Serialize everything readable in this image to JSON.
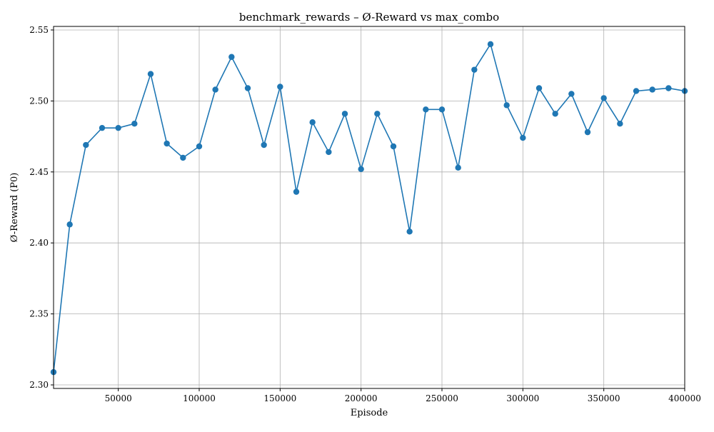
{
  "chart_data": {
    "type": "line",
    "title": "benchmark_rewards – Ø-Reward vs max_combo",
    "xlabel": "Episode",
    "ylabel": "Ø-Reward (P0)",
    "xlim": [
      10000,
      400000
    ],
    "ylim": [
      2.2975,
      2.5525
    ],
    "xticks": [
      50000,
      100000,
      150000,
      200000,
      250000,
      300000,
      350000,
      400000
    ],
    "yticks": [
      2.3,
      2.35,
      2.4,
      2.45,
      2.5,
      2.55
    ],
    "xtick_labels": [
      "50000",
      "100000",
      "150000",
      "200000",
      "250000",
      "300000",
      "350000",
      "400000"
    ],
    "ytick_labels": [
      "2.30",
      "2.35",
      "2.40",
      "2.45",
      "2.50",
      "2.55"
    ],
    "grid": true,
    "colors": {
      "line": "#1f77b4",
      "grid": "#b0b0b0",
      "axis": "#000000"
    },
    "series": [
      {
        "x": [
          10000,
          20000,
          30000,
          40000,
          50000,
          60000,
          70000,
          80000,
          90000,
          100000,
          110000,
          120000,
          130000,
          140000,
          150000,
          160000,
          170000,
          180000,
          190000,
          200000,
          210000,
          220000,
          230000,
          240000,
          250000,
          260000,
          270000,
          280000,
          290000,
          300000,
          310000,
          320000,
          330000,
          340000,
          350000,
          360000,
          370000,
          380000,
          390000,
          400000
        ],
        "values": [
          2.309,
          2.413,
          2.469,
          2.481,
          2.481,
          2.484,
          2.519,
          2.47,
          2.46,
          2.468,
          2.508,
          2.531,
          2.509,
          2.469,
          2.51,
          2.436,
          2.485,
          2.464,
          2.491,
          2.452,
          2.491,
          2.468,
          2.408,
          2.494,
          2.494,
          2.453,
          2.522,
          2.54,
          2.497,
          2.474,
          2.509,
          2.491,
          2.505,
          2.478,
          2.502,
          2.484,
          2.507,
          2.508,
          2.509,
          2.507
        ]
      }
    ]
  }
}
